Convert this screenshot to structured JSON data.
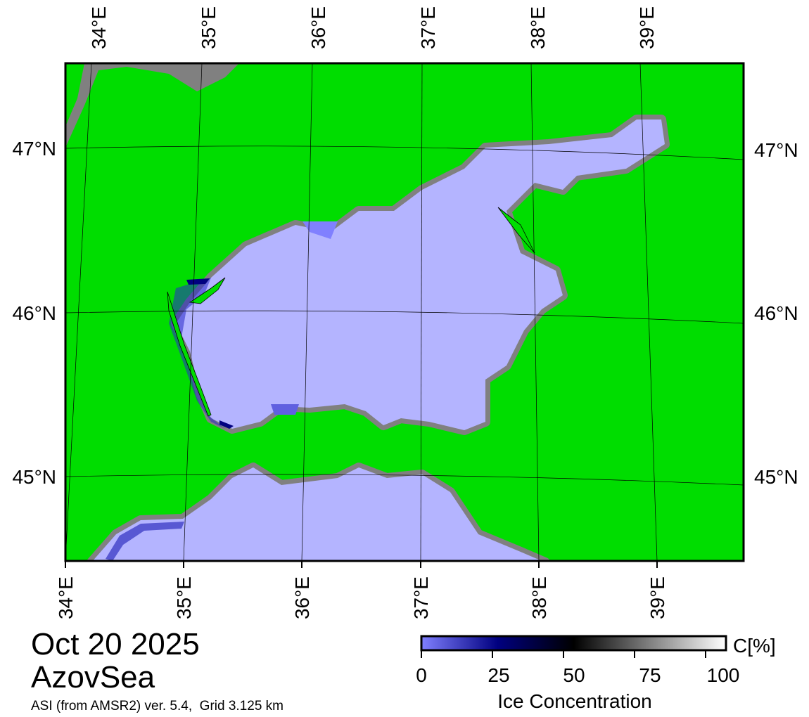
{
  "map": {
    "region_title": "AzovSea",
    "date": "Oct 20 2025",
    "source_note": "ASI (from AMSR2) ver. 5.4,  Grid 3.125 km",
    "longitude_labels": [
      "34°E",
      "35°E",
      "36°E",
      "37°E",
      "38°E",
      "39°E"
    ],
    "latitude_labels": [
      "47°N",
      "46°N",
      "45°N"
    ],
    "colors": {
      "land": "#00dd00",
      "sea_open": "#b4b4ff",
      "coast_mask": "#808080",
      "low_ice": "#2828c8"
    }
  },
  "colorbar": {
    "unit": "C[%]",
    "label": "Ice Concentration",
    "ticks": [
      "0",
      "25",
      "50",
      "75",
      "100"
    ],
    "range": [
      0,
      100
    ],
    "stops": [
      "#8080ff",
      "#000080",
      "#000000",
      "#808080",
      "#ffffff"
    ]
  }
}
